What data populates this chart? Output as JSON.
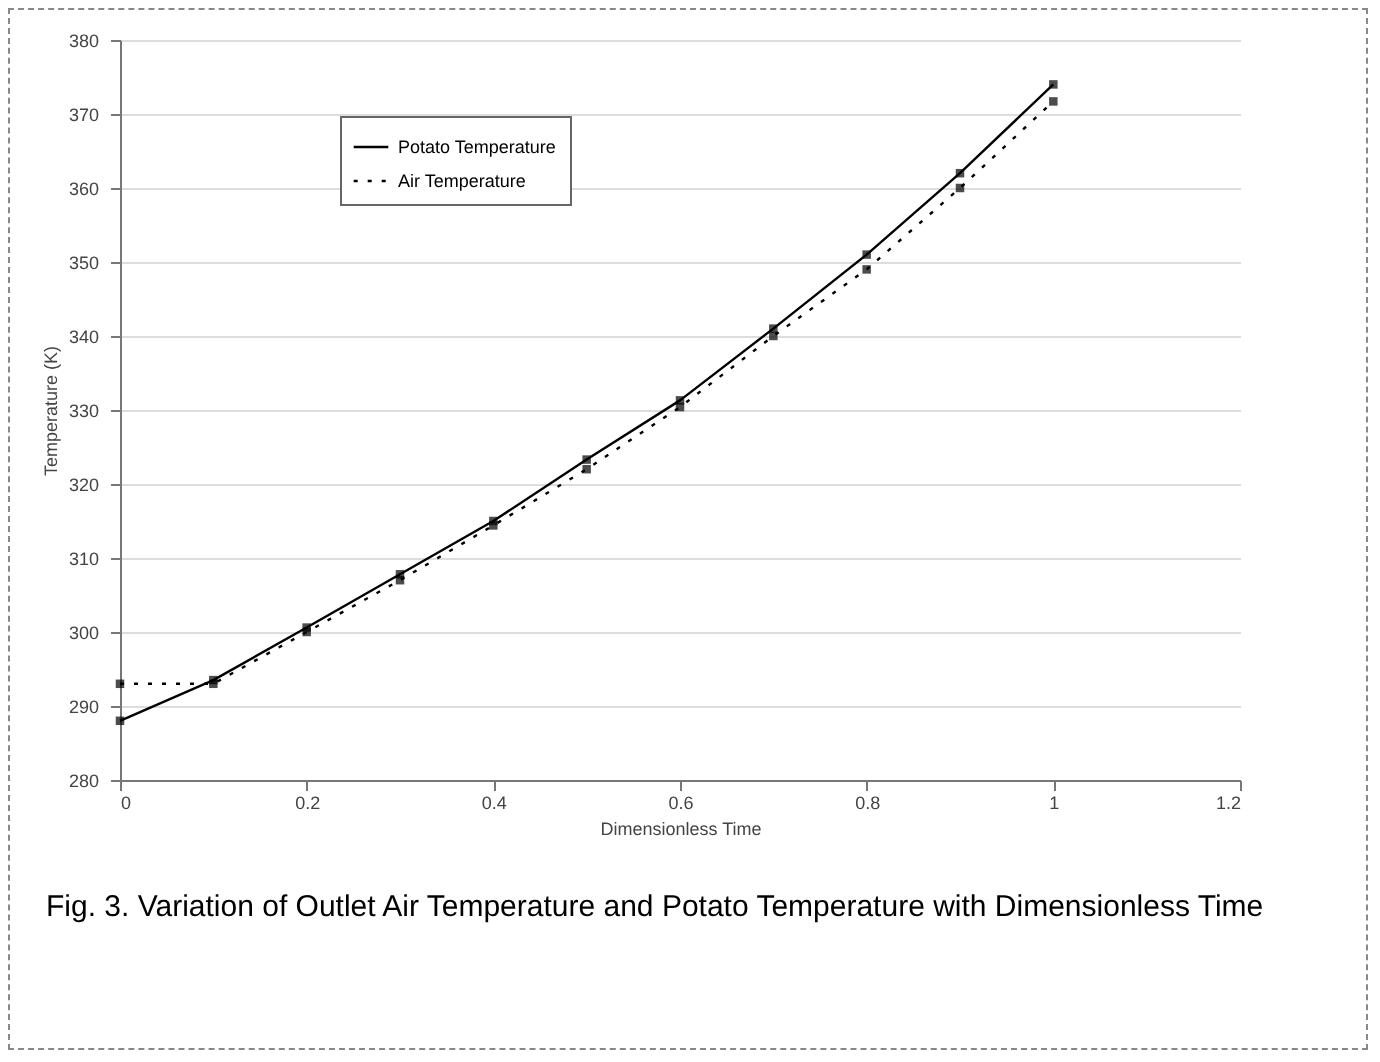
{
  "chart_data": {
    "type": "line",
    "xlabel": "Dimensionless Time",
    "ylabel": "Temperature (K)",
    "x": [
      0,
      0.1,
      0.2,
      0.3,
      0.4,
      0.5,
      0.6,
      0.7,
      0.8,
      0.9,
      1.0
    ],
    "series": [
      {
        "name": "Potato Temperature",
        "color": "#000000",
        "line_style": "solid",
        "values": [
          288,
          293.5,
          300.6,
          307.8,
          315,
          323.3,
          331.3,
          341,
          351,
          362,
          374
        ]
      },
      {
        "name": "Air Temperature",
        "color": "#000000",
        "line_style": "dotted",
        "values": [
          293,
          293,
          300,
          307,
          314.4,
          322,
          330.4,
          340,
          349,
          360,
          371.7
        ]
      }
    ],
    "xlim": [
      0,
      1.2
    ],
    "xticks": [
      0,
      0.2,
      0.4,
      0.6,
      0.8,
      1,
      1.2
    ],
    "ylim": [
      280,
      380
    ],
    "yticks": [
      280,
      290,
      300,
      310,
      320,
      330,
      340,
      350,
      360,
      370,
      380
    ],
    "grid": "y",
    "legend": "top left",
    "marker": "square",
    "annotations": [
      "Fig. 3. Variation of Outlet Air Temperature and Potato Temperature with Dimensionless Time"
    ]
  }
}
